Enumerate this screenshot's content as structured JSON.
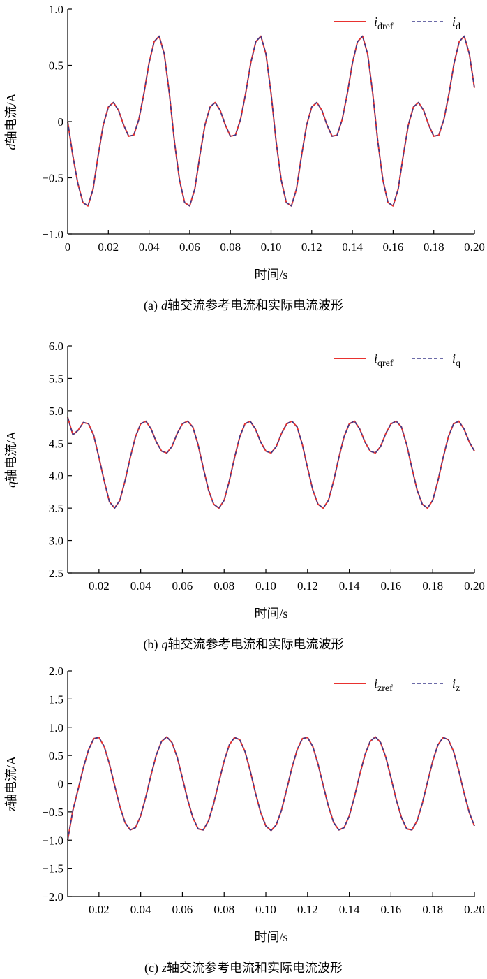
{
  "chart_data": [
    {
      "type": "line",
      "ylabel_var": "d",
      "ylabel": "轴电流/A",
      "xlabel": "时间/s",
      "caption_prefix": "(a)",
      "caption_var": "d",
      "caption": "轴交流参考电流和实际电流波形",
      "xlim": [
        0,
        0.2
      ],
      "ylim": [
        -1,
        1
      ],
      "xticks": [
        0,
        0.02,
        0.04,
        0.06,
        0.08,
        {
          "value": 0.1,
          "label": "0.10"
        },
        0.12,
        0.14,
        0.16,
        0.18,
        {
          "value": 0.2,
          "label": "0.20"
        }
      ],
      "yticks": [
        {
          "value": -1,
          "label": "−1.0"
        },
        {
          "value": -0.5,
          "label": "−0.5"
        },
        0,
        0.5,
        {
          "value": 1,
          "label": "1.0"
        }
      ],
      "legend": "upper right",
      "x": [
        0,
        0.0025,
        0.005,
        0.0075,
        0.01,
        0.0125,
        0.015,
        0.0175,
        0.02,
        0.0225,
        0.025,
        0.0275,
        0.03,
        0.0325,
        0.035,
        0.0375,
        0.04,
        0.0425,
        0.045,
        0.0475,
        0.05,
        0.0525,
        0.055,
        0.0575,
        0.06,
        0.0625,
        0.065,
        0.0675,
        0.07,
        0.0725,
        0.075,
        0.0775,
        0.08,
        0.0825,
        0.085,
        0.0875,
        0.09,
        0.0925,
        0.095,
        0.0975,
        0.1,
        0.1025,
        0.105,
        0.1075,
        0.11,
        0.1125,
        0.115,
        0.1175,
        0.12,
        0.1225,
        0.125,
        0.1275,
        0.13,
        0.1325,
        0.135,
        0.1375,
        0.14,
        0.1425,
        0.145,
        0.1475,
        0.15,
        0.1525,
        0.155,
        0.1575,
        0.16,
        0.1625,
        0.165,
        0.1675,
        0.17,
        0.1725,
        0.175,
        0.1775,
        0.18,
        0.1825,
        0.185,
        0.1875,
        0.19,
        0.1925,
        0.195,
        0.1975,
        0.2
      ],
      "series": [
        {
          "name": "i",
          "subscript": "dref",
          "color": "#e8322f",
          "dash": false,
          "values": [
            0,
            -0.3,
            -0.55,
            -0.72,
            -0.75,
            -0.6,
            -0.3,
            -0.03,
            0.13,
            0.17,
            0.1,
            -0.03,
            -0.13,
            -0.12,
            0.02,
            0.25,
            0.52,
            0.71,
            0.76,
            0.6,
            0.25,
            -0.18,
            -0.52,
            -0.72,
            -0.75,
            -0.6,
            -0.3,
            -0.03,
            0.13,
            0.17,
            0.1,
            -0.03,
            -0.13,
            -0.12,
            0.02,
            0.25,
            0.52,
            0.71,
            0.76,
            0.6,
            0.25,
            -0.18,
            -0.52,
            -0.72,
            -0.75,
            -0.6,
            -0.3,
            -0.03,
            0.13,
            0.17,
            0.1,
            -0.03,
            -0.13,
            -0.12,
            0.02,
            0.25,
            0.52,
            0.71,
            0.76,
            0.6,
            0.25,
            -0.18,
            -0.52,
            -0.72,
            -0.75,
            -0.6,
            -0.3,
            -0.03,
            0.13,
            0.17,
            0.1,
            -0.03,
            -0.13,
            -0.12,
            0.02,
            0.25,
            0.52,
            0.71,
            0.76,
            0.6,
            0.3
          ]
        },
        {
          "name": "i",
          "subscript": "d",
          "color": "#3b3a8c",
          "dash": true,
          "values": [
            0,
            -0.3,
            -0.55,
            -0.72,
            -0.75,
            -0.6,
            -0.3,
            -0.03,
            0.13,
            0.17,
            0.1,
            -0.03,
            -0.13,
            -0.12,
            0.02,
            0.25,
            0.52,
            0.71,
            0.76,
            0.6,
            0.25,
            -0.18,
            -0.52,
            -0.72,
            -0.75,
            -0.6,
            -0.3,
            -0.03,
            0.13,
            0.17,
            0.1,
            -0.03,
            -0.13,
            -0.12,
            0.02,
            0.25,
            0.52,
            0.71,
            0.76,
            0.6,
            0.25,
            -0.18,
            -0.52,
            -0.72,
            -0.75,
            -0.6,
            -0.3,
            -0.03,
            0.13,
            0.17,
            0.1,
            -0.03,
            -0.13,
            -0.12,
            0.02,
            0.25,
            0.52,
            0.71,
            0.76,
            0.6,
            0.25,
            -0.18,
            -0.52,
            -0.72,
            -0.75,
            -0.6,
            -0.3,
            -0.03,
            0.13,
            0.17,
            0.1,
            -0.03,
            -0.13,
            -0.12,
            0.02,
            0.25,
            0.52,
            0.71,
            0.76,
            0.6,
            0.3
          ]
        }
      ]
    },
    {
      "type": "line",
      "ylabel_var": "q",
      "ylabel": "轴电流/A",
      "xlabel": "时间/s",
      "caption_prefix": "(b)",
      "caption_var": "q",
      "caption": "轴交流参考电流和实际电流波形",
      "xlim": [
        0.005,
        0.2
      ],
      "ylim": [
        2.5,
        6
      ],
      "xticks": [
        0.02,
        0.04,
        0.06,
        0.08,
        {
          "value": 0.1,
          "label": "0.10"
        },
        0.12,
        0.14,
        0.16,
        0.18,
        {
          "value": 0.2,
          "label": "0.20"
        }
      ],
      "yticks": [
        2.5,
        {
          "value": 3,
          "label": "3.0"
        },
        3.5,
        {
          "value": 4,
          "label": "4.0"
        },
        4.5,
        {
          "value": 5,
          "label": "5.0"
        },
        5.5,
        {
          "value": 6,
          "label": "6.0"
        }
      ],
      "legend": "upper right",
      "x": [
        0.005,
        0.0075,
        0.01,
        0.0125,
        0.015,
        0.0175,
        0.02,
        0.0225,
        0.025,
        0.0275,
        0.03,
        0.0325,
        0.035,
        0.0375,
        0.04,
        0.0425,
        0.045,
        0.0475,
        0.05,
        0.0525,
        0.055,
        0.0575,
        0.06,
        0.0625,
        0.065,
        0.0675,
        0.07,
        0.0725,
        0.075,
        0.0775,
        0.08,
        0.0825,
        0.085,
        0.0875,
        0.09,
        0.0925,
        0.095,
        0.0975,
        0.1,
        0.1025,
        0.105,
        0.1075,
        0.11,
        0.1125,
        0.115,
        0.1175,
        0.12,
        0.1225,
        0.125,
        0.1275,
        0.13,
        0.1325,
        0.135,
        0.1375,
        0.14,
        0.1425,
        0.145,
        0.1475,
        0.15,
        0.1525,
        0.155,
        0.1575,
        0.16,
        0.1625,
        0.165,
        0.1675,
        0.17,
        0.1725,
        0.175,
        0.1775,
        0.18,
        0.1825,
        0.185,
        0.1875,
        0.19,
        0.1925,
        0.195,
        0.1975,
        0.2
      ],
      "series": [
        {
          "name": "i",
          "subscript": "qref",
          "color": "#e8322f",
          "dash": false,
          "values": [
            4.9,
            4.63,
            4.7,
            4.82,
            4.8,
            4.62,
            4.28,
            3.92,
            3.6,
            3.5,
            3.62,
            3.92,
            4.28,
            4.6,
            4.8,
            4.84,
            4.72,
            4.52,
            4.38,
            4.35,
            4.45,
            4.65,
            4.8,
            4.84,
            4.75,
            4.48,
            4.12,
            3.78,
            3.56,
            3.5,
            3.62,
            3.92,
            4.28,
            4.6,
            4.8,
            4.84,
            4.72,
            4.52,
            4.38,
            4.35,
            4.45,
            4.65,
            4.8,
            4.84,
            4.75,
            4.48,
            4.12,
            3.78,
            3.56,
            3.5,
            3.62,
            3.92,
            4.28,
            4.6,
            4.8,
            4.84,
            4.72,
            4.52,
            4.38,
            4.35,
            4.45,
            4.65,
            4.8,
            4.84,
            4.75,
            4.48,
            4.12,
            3.78,
            3.56,
            3.5,
            3.62,
            3.92,
            4.28,
            4.6,
            4.8,
            4.84,
            4.72,
            4.52,
            4.38
          ]
        },
        {
          "name": "i",
          "subscript": "q",
          "color": "#3b3a8c",
          "dash": true,
          "values": [
            4.9,
            4.63,
            4.7,
            4.82,
            4.8,
            4.62,
            4.28,
            3.92,
            3.6,
            3.5,
            3.62,
            3.92,
            4.28,
            4.6,
            4.8,
            4.84,
            4.72,
            4.52,
            4.38,
            4.35,
            4.45,
            4.65,
            4.8,
            4.84,
            4.75,
            4.48,
            4.12,
            3.78,
            3.56,
            3.5,
            3.62,
            3.92,
            4.28,
            4.6,
            4.8,
            4.84,
            4.72,
            4.52,
            4.38,
            4.35,
            4.45,
            4.65,
            4.8,
            4.84,
            4.75,
            4.48,
            4.12,
            3.78,
            3.56,
            3.5,
            3.62,
            3.92,
            4.28,
            4.6,
            4.8,
            4.84,
            4.72,
            4.52,
            4.38,
            4.35,
            4.45,
            4.65,
            4.8,
            4.84,
            4.75,
            4.48,
            4.12,
            3.78,
            3.56,
            3.5,
            3.62,
            3.92,
            4.28,
            4.6,
            4.8,
            4.84,
            4.72,
            4.52,
            4.38
          ]
        }
      ]
    },
    {
      "type": "line",
      "ylabel_var": "z",
      "ylabel": "轴电流/A",
      "xlabel": "时间/s",
      "caption_prefix": "(c)",
      "caption_var": "z",
      "caption": "轴交流参考电流和实际电流波形",
      "xlim": [
        0.005,
        0.2
      ],
      "ylim": [
        -2,
        2
      ],
      "xticks": [
        0.02,
        0.04,
        0.06,
        0.08,
        {
          "value": 0.1,
          "label": "0.10"
        },
        0.12,
        0.14,
        0.16,
        0.18,
        {
          "value": 0.2,
          "label": "0.20"
        }
      ],
      "yticks": [
        {
          "value": -2,
          "label": "−2.0"
        },
        {
          "value": -1.5,
          "label": "−1.5"
        },
        {
          "value": -1,
          "label": "−1.0"
        },
        {
          "value": -0.5,
          "label": "−0.5"
        },
        0,
        0.5,
        {
          "value": 1,
          "label": "1.0"
        },
        1.5,
        {
          "value": 2,
          "label": "2.0"
        }
      ],
      "legend": "upper right",
      "x": [
        0.005,
        0.0075,
        0.01,
        0.0125,
        0.015,
        0.0175,
        0.02,
        0.0225,
        0.025,
        0.0275,
        0.03,
        0.0325,
        0.035,
        0.0375,
        0.04,
        0.0425,
        0.045,
        0.0475,
        0.05,
        0.0525,
        0.055,
        0.0575,
        0.06,
        0.0625,
        0.065,
        0.0675,
        0.07,
        0.0725,
        0.075,
        0.0775,
        0.08,
        0.0825,
        0.085,
        0.0875,
        0.09,
        0.0925,
        0.095,
        0.0975,
        0.1,
        0.1025,
        0.105,
        0.1075,
        0.11,
        0.1125,
        0.115,
        0.1175,
        0.12,
        0.1225,
        0.125,
        0.1275,
        0.13,
        0.1325,
        0.135,
        0.1375,
        0.14,
        0.1425,
        0.145,
        0.1475,
        0.15,
        0.1525,
        0.155,
        0.1575,
        0.16,
        0.1625,
        0.165,
        0.1675,
        0.17,
        0.1725,
        0.175,
        0.1775,
        0.18,
        0.1825,
        0.185,
        0.1875,
        0.19,
        0.1925,
        0.195,
        0.1975,
        0.2
      ],
      "series": [
        {
          "name": "i",
          "subscript": "zref",
          "color": "#e8322f",
          "dash": false,
          "values": [
            -1,
            -0.47,
            -0.1,
            0.28,
            0.6,
            0.8,
            0.82,
            0.66,
            0.35,
            -0.03,
            -0.4,
            -0.69,
            -0.82,
            -0.78,
            -0.57,
            -0.23,
            0.16,
            0.51,
            0.75,
            0.83,
            0.73,
            0.47,
            0.1,
            -0.28,
            -0.6,
            -0.8,
            -0.82,
            -0.66,
            -0.35,
            0.03,
            0.4,
            0.69,
            0.82,
            0.78,
            0.57,
            0.23,
            -0.16,
            -0.51,
            -0.75,
            -0.83,
            -0.73,
            -0.47,
            -0.1,
            0.28,
            0.6,
            0.8,
            0.82,
            0.66,
            0.35,
            -0.03,
            -0.4,
            -0.69,
            -0.82,
            -0.78,
            -0.57,
            -0.23,
            0.16,
            0.51,
            0.75,
            0.83,
            0.73,
            0.47,
            0.1,
            -0.28,
            -0.6,
            -0.8,
            -0.82,
            -0.66,
            -0.35,
            0.03,
            0.4,
            0.69,
            0.82,
            0.78,
            0.57,
            0.23,
            -0.16,
            -0.51,
            -0.75
          ]
        },
        {
          "name": "i",
          "subscript": "z",
          "color": "#3b3a8c",
          "dash": true,
          "values": [
            -1,
            -0.47,
            -0.1,
            0.28,
            0.6,
            0.8,
            0.82,
            0.66,
            0.35,
            -0.03,
            -0.4,
            -0.69,
            -0.82,
            -0.78,
            -0.57,
            -0.23,
            0.16,
            0.51,
            0.75,
            0.83,
            0.73,
            0.47,
            0.1,
            -0.28,
            -0.6,
            -0.8,
            -0.82,
            -0.66,
            -0.35,
            0.03,
            0.4,
            0.69,
            0.82,
            0.78,
            0.57,
            0.23,
            -0.16,
            -0.51,
            -0.75,
            -0.83,
            -0.73,
            -0.47,
            -0.1,
            0.28,
            0.6,
            0.8,
            0.82,
            0.66,
            0.35,
            -0.03,
            -0.4,
            -0.69,
            -0.82,
            -0.78,
            -0.57,
            -0.23,
            0.16,
            0.51,
            0.75,
            0.83,
            0.73,
            0.47,
            0.1,
            -0.28,
            -0.6,
            -0.8,
            -0.82,
            -0.66,
            -0.35,
            0.03,
            0.4,
            0.69,
            0.82,
            0.78,
            0.57,
            0.23,
            -0.16,
            -0.51,
            -0.75
          ]
        }
      ]
    }
  ]
}
